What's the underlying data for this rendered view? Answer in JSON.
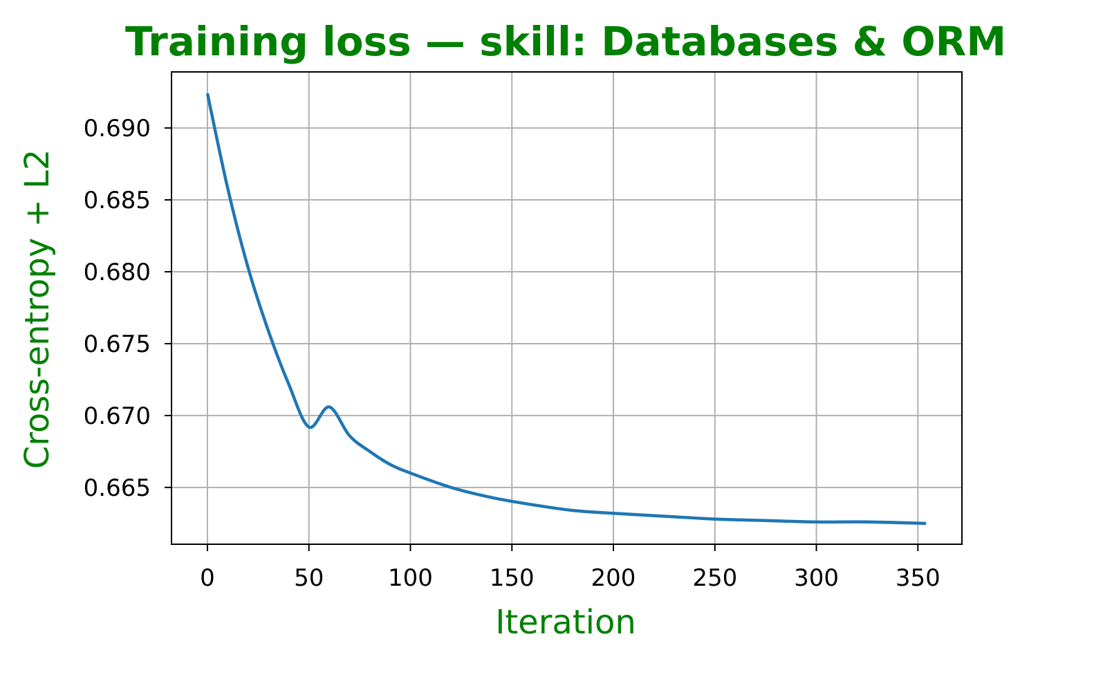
{
  "chart_data": {
    "type": "line",
    "title": "Training loss — skill: Databases & ORM",
    "xlabel": "Iteration",
    "ylabel": "Cross-entropy + L2",
    "xlim": [
      -17.7,
      371.7
    ],
    "ylim": [
      0.66105,
      0.6939
    ],
    "xticks": [
      0,
      50,
      100,
      150,
      200,
      250,
      300,
      350
    ],
    "xtick_labels": [
      "0",
      "50",
      "100",
      "150",
      "200",
      "250",
      "300",
      "350"
    ],
    "yticks": [
      0.665,
      0.67,
      0.675,
      0.68,
      0.685,
      0.69
    ],
    "ytick_labels": [
      "0.665",
      "0.670",
      "0.675",
      "0.680",
      "0.685",
      "0.690"
    ],
    "grid": true,
    "series": [
      {
        "color": "#1f77b4",
        "x": [
          0,
          10,
          20,
          30,
          40,
          50,
          60,
          70,
          80,
          90,
          100,
          120,
          140,
          160,
          180,
          200,
          225,
          250,
          275,
          300,
          325,
          354
        ],
        "y": [
          0.6924,
          0.6858,
          0.6803,
          0.6759,
          0.6722,
          0.6692,
          0.6706,
          0.6686,
          0.6675,
          0.6666,
          0.666,
          0.665,
          0.6643,
          0.6638,
          0.6634,
          0.6632,
          0.663,
          0.6628,
          0.6627,
          0.6626,
          0.6626,
          0.6625
        ]
      }
    ],
    "colors": {
      "title": "#008000",
      "axis_label": "#008000",
      "grid": "#b0b0b0",
      "spine": "#000000"
    }
  }
}
